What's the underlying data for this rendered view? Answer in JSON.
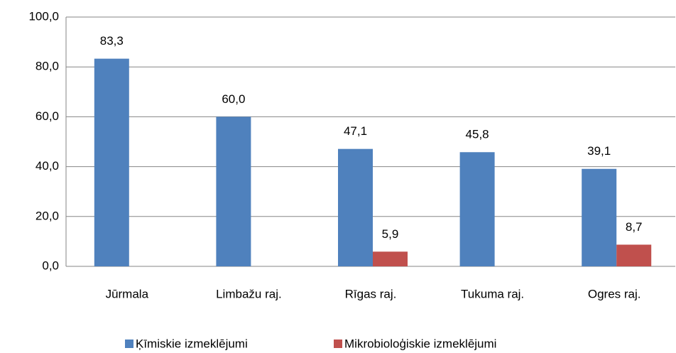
{
  "chart_data": {
    "type": "bar",
    "categories": [
      "Jūrmala",
      "Limbažu raj.",
      "Rīgas raj.",
      "Tukuma raj.",
      "Ogres raj."
    ],
    "series": [
      {
        "name": "Ķīmiskie izmeklējumi",
        "color": "#4f81bd",
        "values": [
          83.3,
          60.0,
          47.1,
          45.8,
          39.1
        ],
        "value_labels": [
          "83,3",
          "60,0",
          "47,1",
          "45,8",
          "39,1"
        ]
      },
      {
        "name": "Mikrobioloģiskie izmeklējumi",
        "color": "#c0504d",
        "values": [
          null,
          null,
          5.9,
          null,
          8.7
        ],
        "value_labels": [
          null,
          null,
          "5,9",
          null,
          "8,7"
        ]
      }
    ],
    "ylim": [
      0,
      100
    ],
    "yticks": [
      {
        "value": 0,
        "label": "0,0"
      },
      {
        "value": 20,
        "label": "20,0"
      },
      {
        "value": 40,
        "label": "40,0"
      },
      {
        "value": 60,
        "label": "60,0"
      },
      {
        "value": 80,
        "label": "80,0"
      },
      {
        "value": 100,
        "label": "100,0"
      }
    ],
    "grid": true,
    "legend": "bottom"
  }
}
